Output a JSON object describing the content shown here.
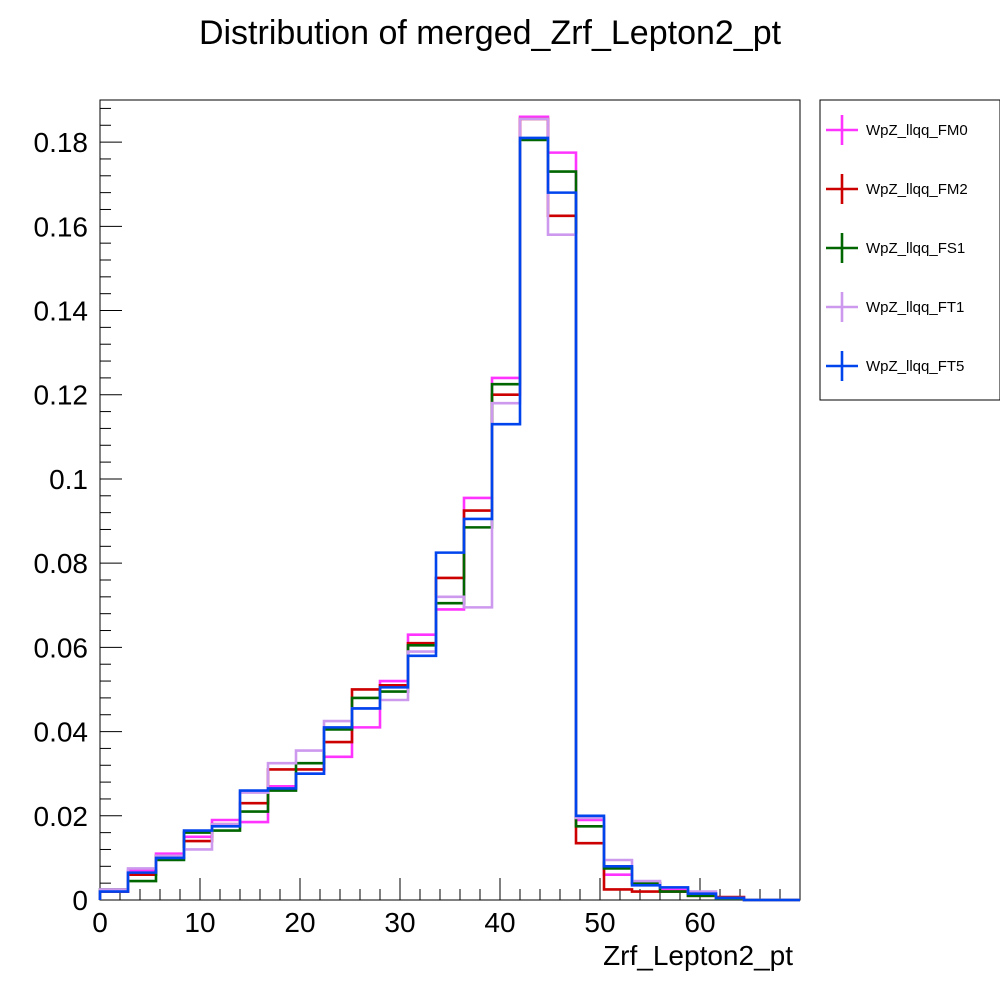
{
  "chart_data": {
    "type": "step-histogram",
    "title": "Distribution of merged_Zrf_Lepton2_pt",
    "xlabel": "Zrf_Lepton2_pt",
    "ylabel": "",
    "xlim": [
      0,
      70
    ],
    "ylim": [
      0,
      0.19
    ],
    "bin_width": 2.8,
    "bin_edges": [
      0,
      2.8,
      5.6,
      8.4,
      11.2,
      14.0,
      16.8,
      19.6,
      22.4,
      25.2,
      28.0,
      30.8,
      33.6,
      36.4,
      39.2,
      42.0,
      44.8,
      47.6,
      50.4,
      53.2,
      56.0,
      58.8,
      61.6,
      64.4,
      67.2,
      70.0
    ],
    "x_ticks": [
      0,
      10,
      20,
      30,
      40,
      50,
      60
    ],
    "x_tick_labels": [
      "0",
      "10",
      "20",
      "30",
      "40",
      "50",
      "60"
    ],
    "y_ticks": [
      0,
      0.02,
      0.04,
      0.06,
      0.08,
      0.1,
      0.12,
      0.14,
      0.16,
      0.18
    ],
    "y_tick_labels": [
      "0",
      "0.02",
      "0.04",
      "0.06",
      "0.08",
      "0.1",
      "0.12",
      "0.14",
      "0.16",
      "0.18"
    ],
    "legend_position": "right",
    "series": [
      {
        "name": "WpZ_llqq_FM0",
        "color": "#ff33ff",
        "values": [
          0.002,
          0.007,
          0.011,
          0.015,
          0.019,
          0.0185,
          0.027,
          0.03,
          0.034,
          0.041,
          0.052,
          0.063,
          0.069,
          0.0955,
          0.124,
          0.186,
          0.1775,
          0.019,
          0.006,
          0.004,
          0.0025,
          0.0015,
          0.0005,
          0,
          0
        ]
      },
      {
        "name": "WpZ_llqq_FM2",
        "color": "#cc0000",
        "values": [
          0.002,
          0.006,
          0.0105,
          0.014,
          0.018,
          0.023,
          0.031,
          0.031,
          0.0375,
          0.05,
          0.051,
          0.061,
          0.0765,
          0.0925,
          0.12,
          0.1855,
          0.1625,
          0.0135,
          0.0025,
          0.002,
          0.002,
          0.001,
          0.0007,
          0,
          0
        ]
      },
      {
        "name": "WpZ_llqq_FS1",
        "color": "#006600",
        "values": [
          0.0025,
          0.0045,
          0.0095,
          0.016,
          0.0165,
          0.021,
          0.026,
          0.0325,
          0.0405,
          0.048,
          0.0495,
          0.0605,
          0.0705,
          0.0885,
          0.1225,
          0.1805,
          0.173,
          0.0175,
          0.0075,
          0.004,
          0.002,
          0.001,
          0.0003,
          0,
          0
        ]
      },
      {
        "name": "WpZ_llqq_FT1",
        "color": "#cc99ee",
        "values": [
          0.0025,
          0.0075,
          0.0105,
          0.012,
          0.018,
          0.0255,
          0.0325,
          0.0355,
          0.0425,
          0.0455,
          0.0475,
          0.059,
          0.072,
          0.0695,
          0.118,
          0.1855,
          0.158,
          0.0195,
          0.0095,
          0.0045,
          0.003,
          0.002,
          0.0005,
          0,
          0
        ]
      },
      {
        "name": "WpZ_llqq_FT5",
        "color": "#0044ee",
        "values": [
          0.002,
          0.0065,
          0.01,
          0.0165,
          0.0175,
          0.026,
          0.0265,
          0.03,
          0.041,
          0.0455,
          0.0505,
          0.058,
          0.0825,
          0.0905,
          0.113,
          0.181,
          0.168,
          0.02,
          0.008,
          0.0035,
          0.003,
          0.0015,
          0.0005,
          0,
          0
        ]
      }
    ]
  }
}
